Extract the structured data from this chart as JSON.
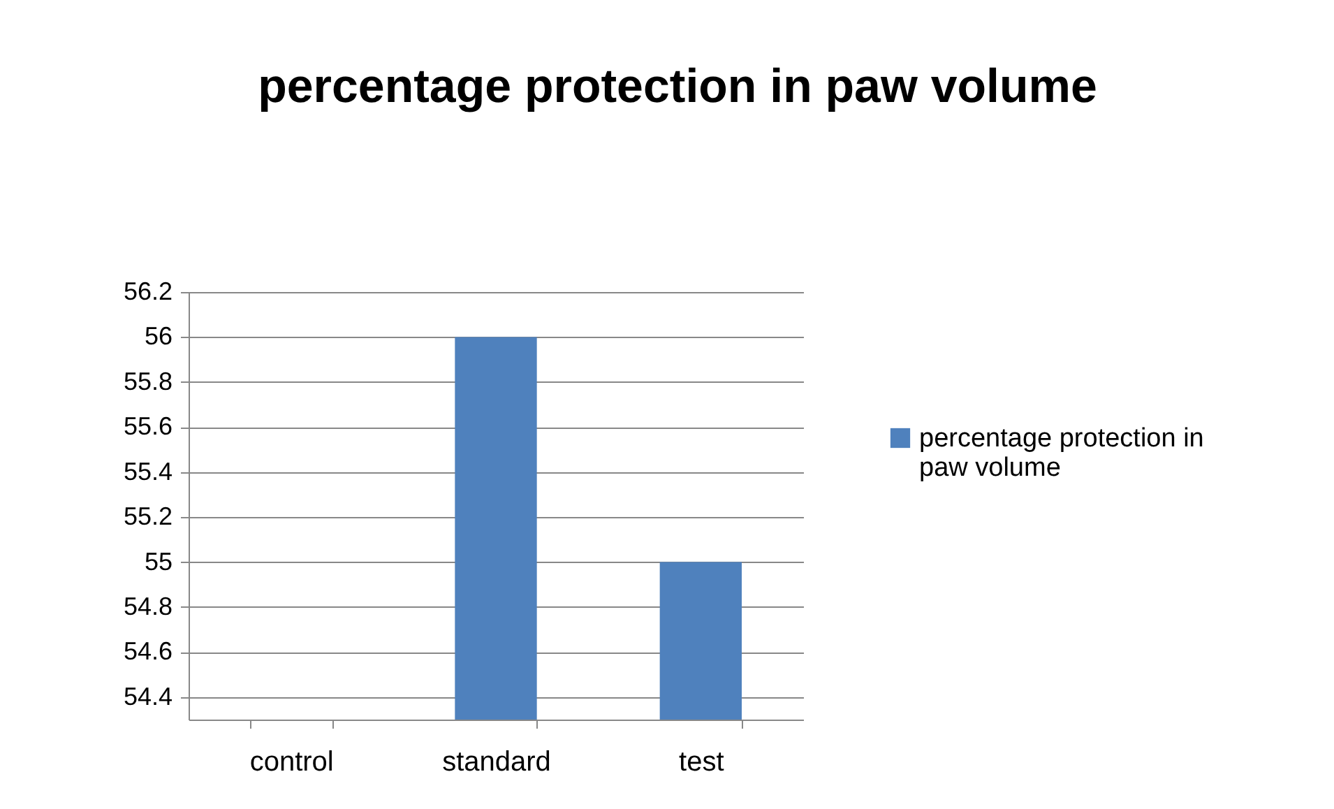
{
  "chart_data": {
    "type": "bar",
    "title": "percentage protection in paw volume",
    "categories": [
      "control",
      "standard",
      "test"
    ],
    "series": [
      {
        "name": "percentage protection in paw volume",
        "color": "#4f81bd",
        "values": [
          null,
          56,
          55
        ]
      }
    ],
    "ylim": [
      54.3,
      56.2
    ],
    "yticks": [
      54.4,
      54.6,
      54.8,
      55,
      55.2,
      55.4,
      55.6,
      55.8,
      56,
      56.2
    ],
    "grid": "y",
    "legend": "right"
  }
}
